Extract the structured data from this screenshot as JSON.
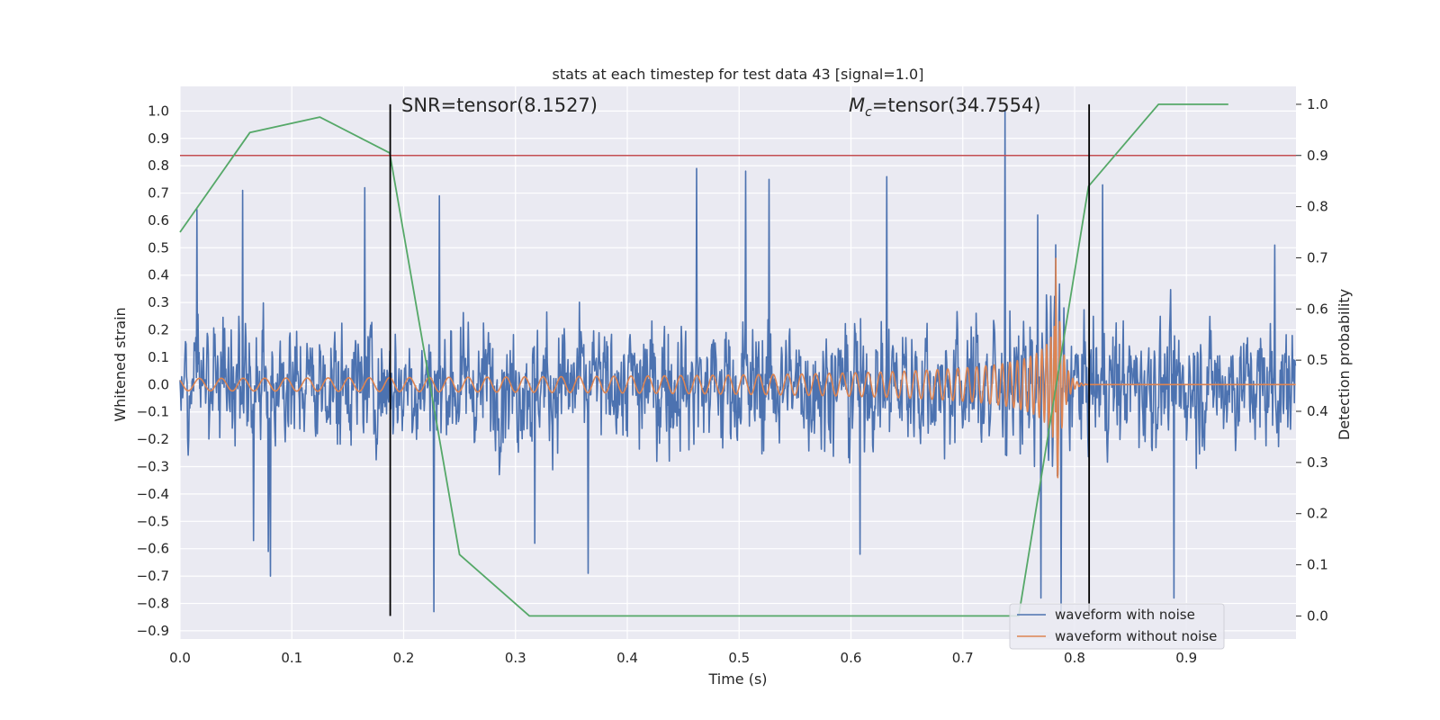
{
  "chart_data": {
    "type": "line",
    "title": "stats at each timestep for test data 43 [signal=1.0]",
    "xlabel": "Time (s)",
    "ylabel": "Whitened strain",
    "y2label": "Detection probability",
    "xlim": [
      0.0,
      0.998
    ],
    "ylim": [
      -0.93,
      1.09
    ],
    "y2lim": [
      -0.045,
      1.035
    ],
    "x_ticks": [
      0.0,
      0.1,
      0.2,
      0.3,
      0.4,
      0.5,
      0.6,
      0.7,
      0.8,
      0.9
    ],
    "x_tick_labels": [
      "0.0",
      "0.1",
      "0.2",
      "0.3",
      "0.4",
      "0.5",
      "0.6",
      "0.7",
      "0.8",
      "0.9"
    ],
    "y_ticks": [
      -0.9,
      -0.8,
      -0.7,
      -0.6,
      -0.5,
      -0.4,
      -0.3,
      -0.2,
      -0.1,
      0.0,
      0.1,
      0.2,
      0.3,
      0.4,
      0.5,
      0.6,
      0.7,
      0.8,
      0.9,
      1.0
    ],
    "y_tick_labels": [
      "−0.9",
      "−0.8",
      "−0.7",
      "−0.6",
      "−0.5",
      "−0.4",
      "−0.3",
      "−0.2",
      "−0.1",
      "0.0",
      "0.1",
      "0.2",
      "0.3",
      "0.4",
      "0.5",
      "0.6",
      "0.7",
      "0.8",
      "0.9",
      "1.0"
    ],
    "y2_ticks": [
      0.0,
      0.1,
      0.2,
      0.3,
      0.4,
      0.5,
      0.6,
      0.7,
      0.8,
      0.9,
      1.0
    ],
    "y2_tick_labels": [
      "0.0",
      "0.1",
      "0.2",
      "0.3",
      "0.4",
      "0.5",
      "0.6",
      "0.7",
      "0.8",
      "0.9",
      "1.0"
    ],
    "grid": true,
    "legend_position": "lower-right",
    "annotations": [
      {
        "text_prefix": "SNR=tensor(8.1527)",
        "text_math": "",
        "x": 0.198
      },
      {
        "text_prefix": "=tensor(34.7554)",
        "text_math": "M",
        "math_subscript": "c",
        "x": 0.598
      }
    ],
    "series": [
      {
        "name": "waveform with noise",
        "color": "#4c72b0",
        "style": "noise",
        "amplitude": 0.26,
        "peaks": [
          {
            "x": 0.015,
            "y": 0.64
          },
          {
            "x": 0.056,
            "y": 0.71
          },
          {
            "x": 0.066,
            "y": -0.57
          },
          {
            "x": 0.079,
            "y": -0.61
          },
          {
            "x": 0.081,
            "y": -0.7
          },
          {
            "x": 0.165,
            "y": 0.72
          },
          {
            "x": 0.227,
            "y": -0.83
          },
          {
            "x": 0.232,
            "y": 0.69
          },
          {
            "x": 0.317,
            "y": -0.58
          },
          {
            "x": 0.365,
            "y": -0.69
          },
          {
            "x": 0.462,
            "y": 0.79
          },
          {
            "x": 0.506,
            "y": 0.78
          },
          {
            "x": 0.527,
            "y": 0.75
          },
          {
            "x": 0.608,
            "y": -0.62
          },
          {
            "x": 0.632,
            "y": 0.76
          },
          {
            "x": 0.738,
            "y": 1.0
          },
          {
            "x": 0.767,
            "y": 0.62
          },
          {
            "x": 0.77,
            "y": -0.78
          },
          {
            "x": 0.788,
            "y": -0.83
          },
          {
            "x": 0.825,
            "y": 0.73
          },
          {
            "x": 0.889,
            "y": -0.78
          },
          {
            "x": 0.979,
            "y": 0.51
          }
        ]
      },
      {
        "name": "waveform without noise",
        "color": "#dd8452",
        "style": "chirp",
        "merger_time": 0.783,
        "ringdown_end": 0.81
      },
      {
        "name": "Detection probability",
        "color": "#55a868",
        "axis": "right",
        "x": [
          0.0,
          0.0625,
          0.125,
          0.1875,
          0.25,
          0.3125,
          0.75,
          0.8125,
          0.875,
          0.9375
        ],
        "values": [
          0.75,
          0.945,
          0.975,
          0.905,
          0.12,
          0.0,
          0.0,
          0.84,
          1.0,
          1.0
        ]
      }
    ],
    "threshold_line": {
      "axis": "right",
      "value": 0.9,
      "color": "#c44e52"
    },
    "vertical_lines": [
      {
        "x": 0.188,
        "color": "#000000"
      },
      {
        "x": 0.813,
        "color": "#000000"
      }
    ],
    "legend": [
      {
        "label": "waveform with noise",
        "color": "#4c72b0"
      },
      {
        "label": "waveform without noise",
        "color": "#dd8452"
      }
    ],
    "colors": {
      "plot_background": "#eaeaf2",
      "grid": "#ffffff",
      "text": "#262626"
    }
  }
}
